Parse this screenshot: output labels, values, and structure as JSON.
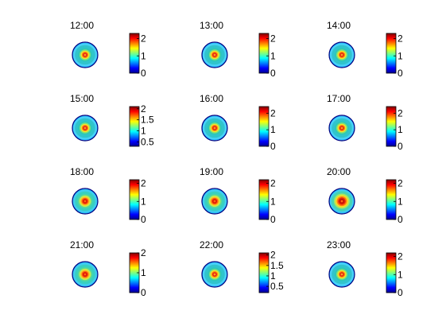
{
  "figure": {
    "background": "#ffffff",
    "colormap": "jet"
  },
  "chart_data": [
    {
      "type": "heatmap",
      "title": "12:00",
      "clim": [
        0,
        2.3
      ],
      "colorbar_ticks": [
        "0",
        "1",
        "2"
      ],
      "ring": "light"
    },
    {
      "type": "heatmap",
      "title": "13:00",
      "clim": [
        0,
        2.3
      ],
      "colorbar_ticks": [
        "0",
        "1",
        "2"
      ],
      "ring": "light"
    },
    {
      "type": "heatmap",
      "title": "14:00",
      "clim": [
        0,
        2.3
      ],
      "colorbar_ticks": [
        "0",
        "1",
        "2"
      ],
      "ring": "light"
    },
    {
      "type": "heatmap",
      "title": "15:00",
      "clim": [
        0.3,
        2.1
      ],
      "colorbar_ticks": [
        "0.5",
        "1",
        "1.5",
        "2"
      ],
      "ring": "light"
    },
    {
      "type": "heatmap",
      "title": "16:00",
      "clim": [
        0,
        2.4
      ],
      "colorbar_ticks": [
        "0",
        "1",
        "2"
      ],
      "ring": "light"
    },
    {
      "type": "heatmap",
      "title": "17:00",
      "clim": [
        0,
        2.4
      ],
      "colorbar_ticks": [
        "0",
        "1",
        "2"
      ],
      "ring": "light"
    },
    {
      "type": "heatmap",
      "title": "18:00",
      "clim": [
        0,
        2.2
      ],
      "colorbar_ticks": [
        "0",
        "1",
        "2"
      ],
      "ring": "medium"
    },
    {
      "type": "heatmap",
      "title": "19:00",
      "clim": [
        0,
        2.2
      ],
      "colorbar_ticks": [
        "0",
        "1",
        "2"
      ],
      "ring": "medium"
    },
    {
      "type": "heatmap",
      "title": "20:00",
      "clim": [
        0,
        2.2
      ],
      "colorbar_ticks": [
        "0",
        "1",
        "2"
      ],
      "ring": "strong"
    },
    {
      "type": "heatmap",
      "title": "21:00",
      "clim": [
        0,
        2.0
      ],
      "colorbar_ticks": [
        "0",
        "1",
        "2"
      ],
      "ring": "medium"
    },
    {
      "type": "heatmap",
      "title": "22:00",
      "clim": [
        0.2,
        2.1
      ],
      "colorbar_ticks": [
        "0.5",
        "1",
        "1.5",
        "2"
      ],
      "ring": "light"
    },
    {
      "type": "heatmap",
      "title": "23:00",
      "clim": [
        0,
        2.2
      ],
      "colorbar_ticks": [
        "0",
        "1",
        "2"
      ],
      "ring": "light"
    }
  ]
}
